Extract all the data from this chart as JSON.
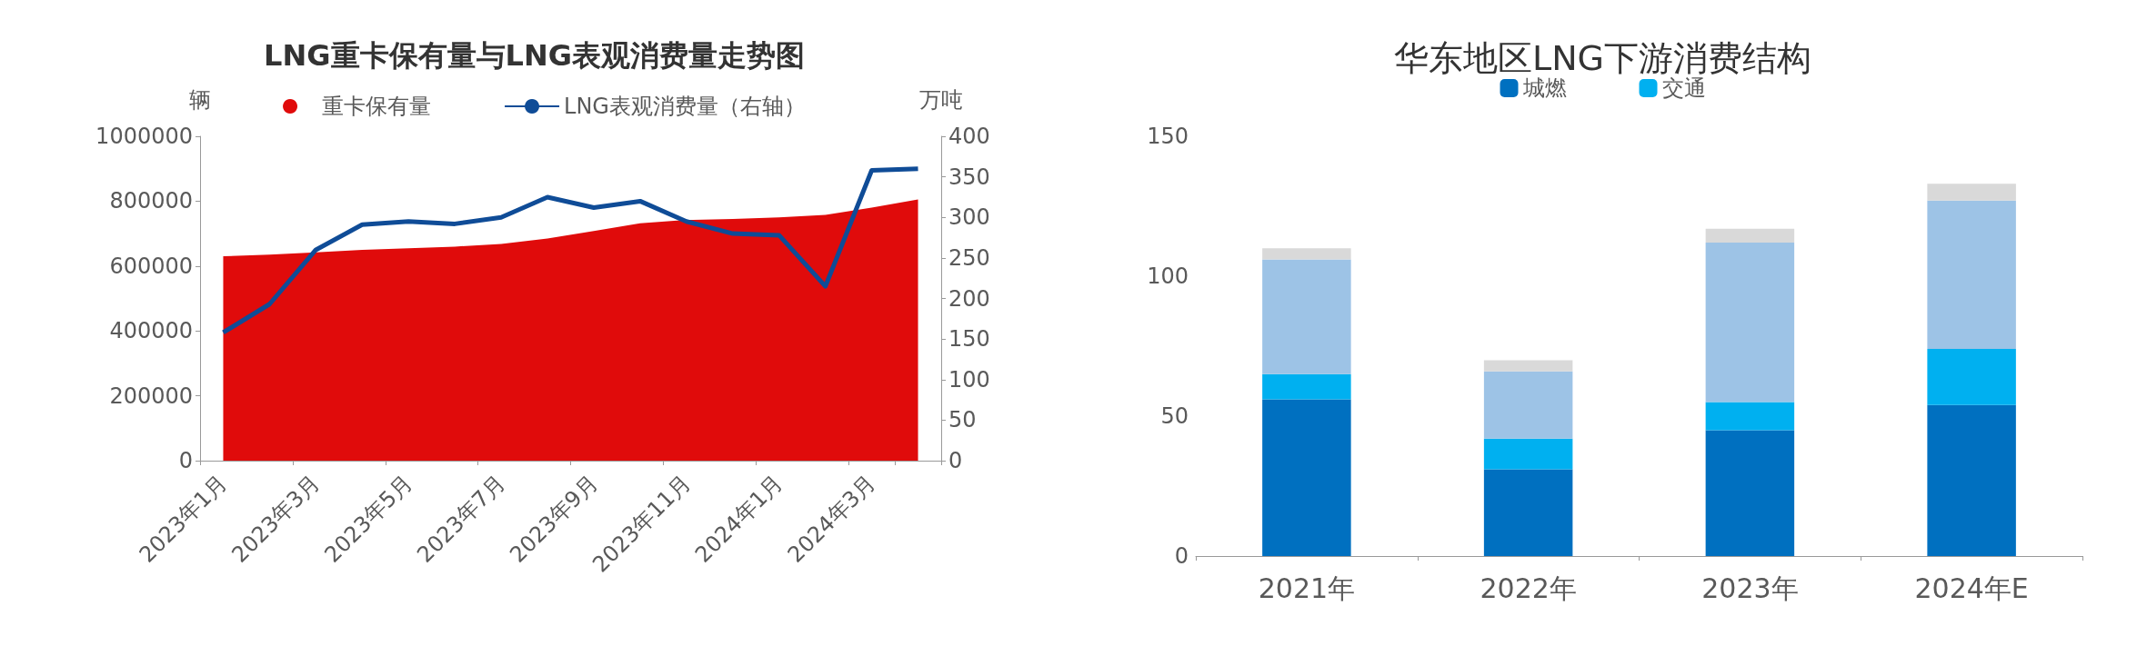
{
  "chart_data": [
    {
      "type": "area",
      "title": "LNG重卡保有量与LNG表观消费量走势图",
      "ylabel": "辆",
      "y2label": "万吨",
      "categories": [
        "2023年1月",
        null,
        "2023年3月",
        null,
        "2023年5月",
        null,
        "2023年7月",
        null,
        "2023年9月",
        null,
        "2023年11月",
        null,
        "2024年1月",
        null,
        "2024年3月",
        null
      ],
      "series": [
        {
          "name": "重卡保有量",
          "type": "area",
          "color": "#e00b0b",
          "values": [
            630000,
            635000,
            642000,
            650000,
            655000,
            660000,
            668000,
            685000,
            708000,
            732000,
            742000,
            745000,
            750000,
            758000,
            780000,
            805000
          ]
        },
        {
          "name": "LNG表观消费量（右轴）",
          "type": "line",
          "axis": "y2",
          "color": "#0f4c97",
          "values": [
            158,
            193,
            260,
            291,
            295,
            292,
            300,
            325,
            312,
            320,
            295,
            280,
            278,
            215,
            358,
            360
          ]
        }
      ],
      "ylim": [
        0,
        1000000
      ],
      "yticks": [
        0,
        200000,
        400000,
        600000,
        800000,
        1000000
      ],
      "y2lim": [
        0,
        400
      ],
      "y2ticks": [
        0,
        50,
        100,
        150,
        200,
        250,
        300,
        350,
        400
      ],
      "grid": false,
      "legend": "top",
      "marker": "none"
    },
    {
      "type": "bar",
      "title": "华东地区LNG下游消费结构",
      "stacked": true,
      "categories": [
        "2021年",
        "2022年",
        "2023年",
        "2024年E"
      ],
      "series": [
        {
          "name": "城燃",
          "color": "#0070c0",
          "values": [
            56,
            31,
            45,
            54
          ]
        },
        {
          "name": "交通",
          "color": "#00b0f0",
          "values": [
            9,
            11,
            10,
            20
          ]
        },
        {
          "color": "#9dc3e6",
          "values": [
            41,
            24,
            57,
            53
          ]
        },
        {
          "color": "#d9d9d9",
          "values": [
            4,
            4,
            5,
            6
          ]
        }
      ],
      "ylim": [
        0,
        150
      ],
      "yticks": [
        0,
        50,
        100,
        150
      ],
      "grid": false,
      "legend": "top"
    }
  ]
}
